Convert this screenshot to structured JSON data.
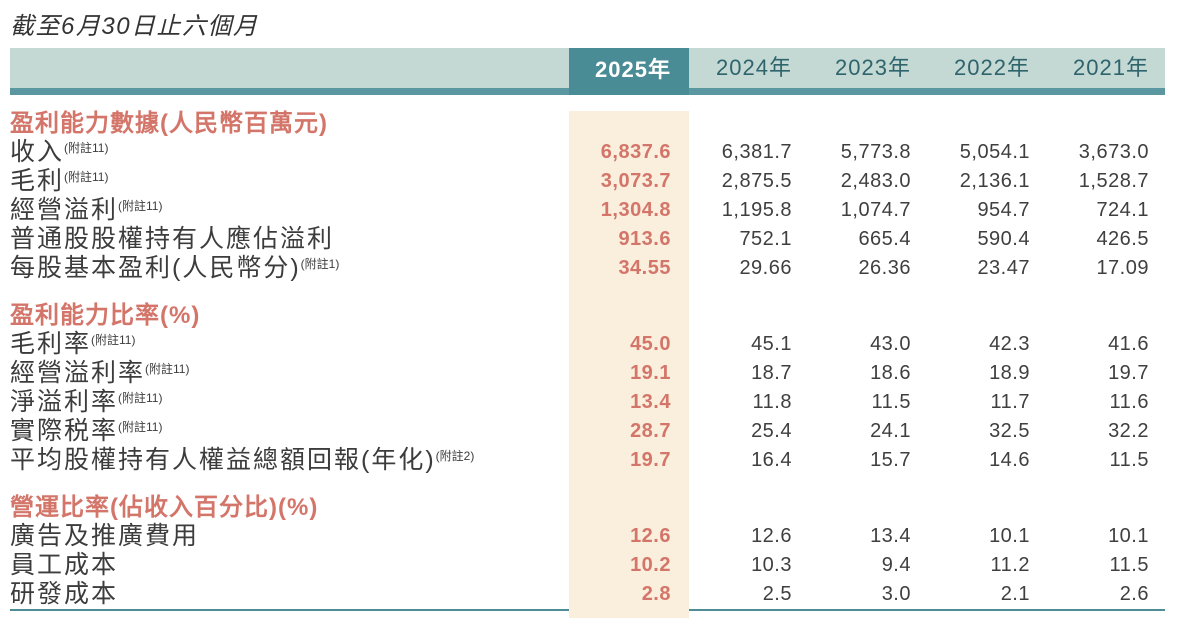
{
  "page": {
    "title": "截至6月30日止六個月"
  },
  "table": {
    "year_headers": [
      "2025年",
      "2024年",
      "2023年",
      "2022年",
      "2021年"
    ],
    "sections": [
      {
        "header": "盈利能力數據(人民幣百萬元)",
        "rows": [
          {
            "label": "收入",
            "note": "(附註11)",
            "values": [
              "6,837.6",
              "6,381.7",
              "5,773.8",
              "5,054.1",
              "3,673.0"
            ]
          },
          {
            "label": "毛利",
            "note": "(附註11)",
            "values": [
              "3,073.7",
              "2,875.5",
              "2,483.0",
              "2,136.1",
              "1,528.7"
            ]
          },
          {
            "label": "經營溢利",
            "note": "(附註11)",
            "values": [
              "1,304.8",
              "1,195.8",
              "1,074.7",
              "954.7",
              "724.1"
            ]
          },
          {
            "label": "普通股股權持有人應佔溢利",
            "note": "",
            "values": [
              "913.6",
              "752.1",
              "665.4",
              "590.4",
              "426.5"
            ]
          },
          {
            "label": "每股基本盈利(人民幣分)",
            "note": "(附註1)",
            "values": [
              "34.55",
              "29.66",
              "26.36",
              "23.47",
              "17.09"
            ]
          }
        ]
      },
      {
        "header": "盈利能力比率(%)",
        "rows": [
          {
            "label": "毛利率",
            "note": "(附註11)",
            "values": [
              "45.0",
              "45.1",
              "43.0",
              "42.3",
              "41.6"
            ]
          },
          {
            "label": "經營溢利率",
            "note": "(附註11)",
            "values": [
              "19.1",
              "18.7",
              "18.6",
              "18.9",
              "19.7"
            ]
          },
          {
            "label": "淨溢利率",
            "note": "(附註11)",
            "values": [
              "13.4",
              "11.8",
              "11.5",
              "11.7",
              "11.6"
            ]
          },
          {
            "label": "實際税率",
            "note": "(附註11)",
            "values": [
              "28.7",
              "25.4",
              "24.1",
              "32.5",
              "32.2"
            ]
          },
          {
            "label": "平均股權持有人權益總額回報(年化)",
            "note": "(附註2)",
            "values": [
              "19.7",
              "16.4",
              "15.7",
              "14.6",
              "11.5"
            ]
          }
        ]
      },
      {
        "header": "營運比率(佔收入百分比)(%)",
        "rows": [
          {
            "label": "廣告及推廣費用",
            "note": "",
            "values": [
              "12.6",
              "12.6",
              "13.4",
              "10.1",
              "10.1"
            ]
          },
          {
            "label": "員工成本",
            "note": "",
            "values": [
              "10.2",
              "10.3",
              "9.4",
              "11.2",
              "11.5"
            ]
          },
          {
            "label": "研發成本",
            "note": "",
            "values": [
              "2.8",
              "2.5",
              "3.0",
              "2.1",
              "2.6"
            ]
          }
        ]
      }
    ]
  },
  "colors": {
    "teal_dark": "#4a8c95",
    "teal_strip": "#5b97a0",
    "teal_light": "#c4d8d4",
    "teal_text": "#2e646c",
    "highlight_cream": "#faeedc",
    "salmon_accent": "#d4756a",
    "text_dark": "#3c3c3c"
  }
}
